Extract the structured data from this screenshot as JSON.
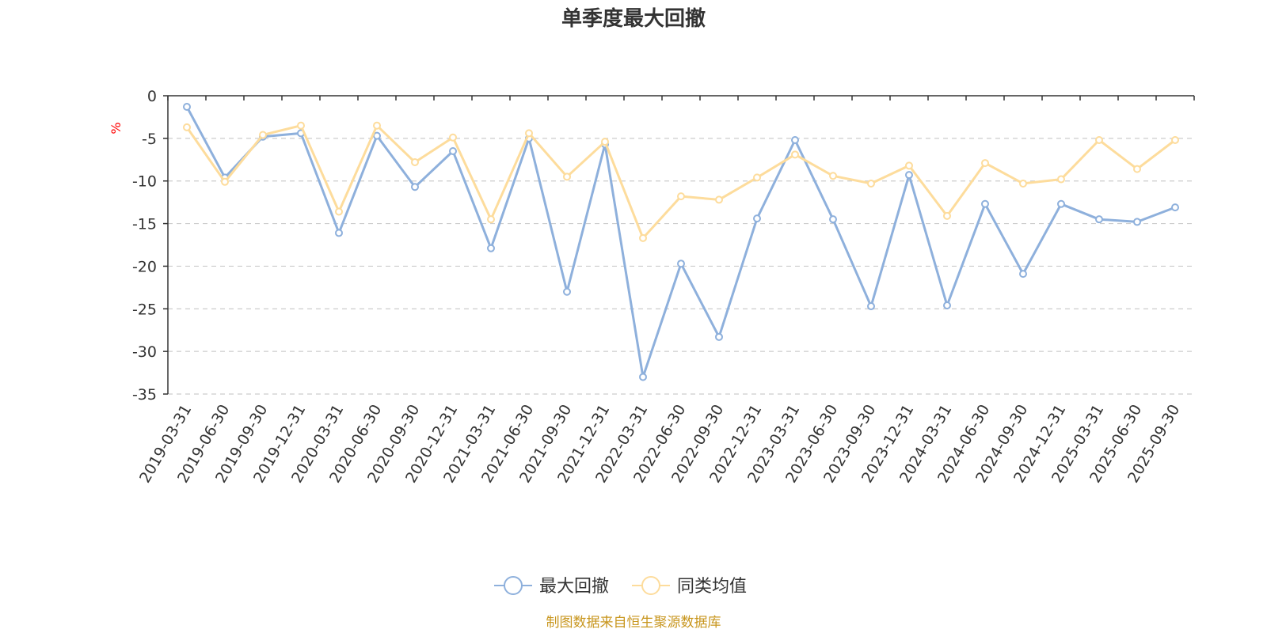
{
  "chart_data": {
    "type": "line",
    "title": "单季度最大回撤",
    "ylabel": "%",
    "ylim": [
      -35,
      0
    ],
    "yticks": [
      0,
      -5,
      -10,
      -15,
      -20,
      -25,
      -30,
      -35
    ],
    "grid": true,
    "legend_position": "bottom-center",
    "categories": [
      "2019-03-31",
      "2019-06-30",
      "2019-09-30",
      "2019-12-31",
      "2020-03-31",
      "2020-06-30",
      "2020-09-30",
      "2020-12-31",
      "2021-03-31",
      "2021-06-30",
      "2021-09-30",
      "2021-12-31",
      "2022-03-31",
      "2022-06-30",
      "2022-09-30",
      "2022-12-31",
      "2023-03-31",
      "2023-06-30",
      "2023-09-30",
      "2023-12-31",
      "2024-03-31",
      "2024-06-30",
      "2024-09-30",
      "2024-12-31",
      "2025-03-31",
      "2025-06-30",
      "2025-09-30"
    ],
    "series": [
      {
        "name": "最大回撤",
        "color": "#8eb0dc",
        "values": [
          -1.3,
          -9.6,
          -4.8,
          -4.4,
          -16.1,
          -4.7,
          -10.7,
          -6.5,
          -17.9,
          -5.0,
          -23.0,
          -5.7,
          -33.0,
          -19.7,
          -28.3,
          -14.4,
          -5.2,
          -14.5,
          -24.7,
          -9.3,
          -24.6,
          -12.7,
          -20.9,
          -12.7,
          -14.5,
          -14.8,
          -13.1
        ]
      },
      {
        "name": "同类均值",
        "color": "#fddc9c",
        "values": [
          -3.7,
          -10.1,
          -4.6,
          -3.5,
          -13.6,
          -3.5,
          -7.8,
          -4.9,
          -14.5,
          -4.4,
          -9.5,
          -5.4,
          -16.7,
          -11.8,
          -12.2,
          -9.6,
          -6.9,
          -9.4,
          -10.3,
          -8.2,
          -14.1,
          -7.9,
          -10.3,
          -9.8,
          -5.2,
          -8.6,
          -5.2
        ]
      }
    ],
    "axis_color": "#333333",
    "grid_color": "#cccccc",
    "ylabel_color": "#ff0000"
  },
  "source": {
    "text": "制图数据来自恒生聚源数据库",
    "color": "#c8961e"
  }
}
